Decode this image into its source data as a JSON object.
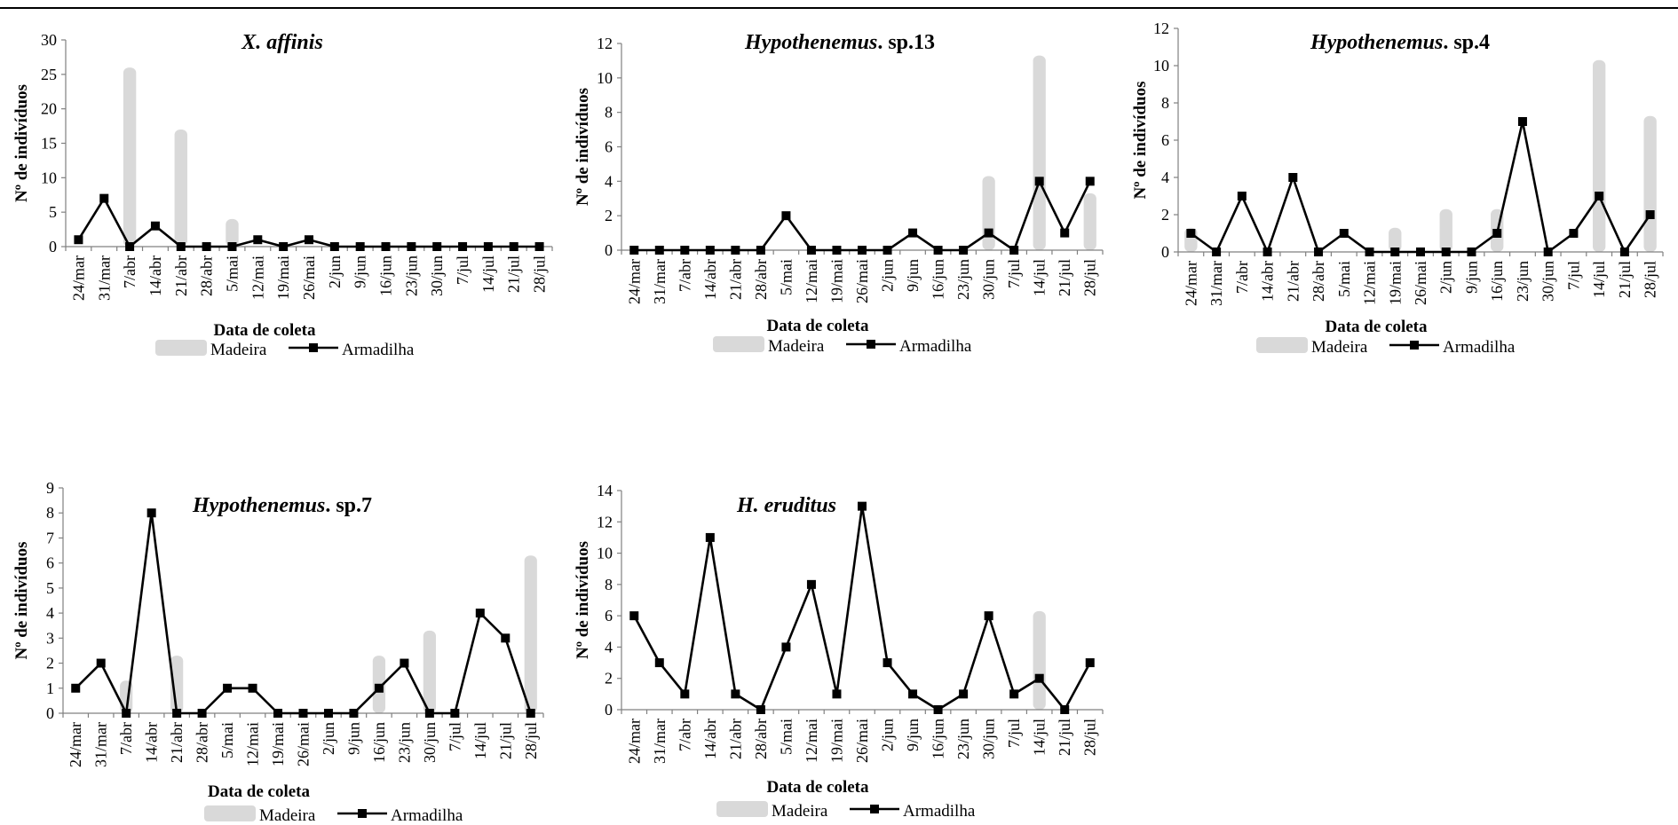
{
  "chart_data": [
    {
      "type": "bar",
      "title_italic": "X. affinis",
      "title_rest": "",
      "xlabel": "Data de coleta",
      "ylabel": "Nº de indivíduos",
      "ylim": [
        0,
        30
      ],
      "yticks": [
        0,
        5,
        10,
        15,
        20,
        25,
        30
      ],
      "categories": [
        "24/mar",
        "31/mar",
        "7/abr",
        "14/abr",
        "21/abr",
        "28/abr",
        "5/mai",
        "12/mai",
        "19/mai",
        "26/mai",
        "2/jun",
        "9/jun",
        "16/jun",
        "23/jun",
        "30/jun",
        "7/jul",
        "14/jul",
        "21/jul",
        "28/jul"
      ],
      "series": [
        {
          "name": "Madeira",
          "kind": "bar",
          "values": [
            0,
            0,
            26,
            0,
            17,
            0,
            4,
            0,
            0,
            0,
            0,
            0,
            0,
            0,
            0,
            0,
            0,
            0,
            0
          ]
        },
        {
          "name": "Armadilha",
          "kind": "line",
          "values": [
            1,
            7,
            0,
            3,
            0,
            0,
            0,
            1,
            0,
            1,
            0,
            0,
            0,
            0,
            0,
            0,
            0,
            0,
            0
          ]
        }
      ],
      "legend": [
        "Madeira",
        "Armadilha"
      ],
      "legend_position": "bottom"
    },
    {
      "type": "bar",
      "title_italic": "Hypothenemus",
      "title_rest": ". sp.13",
      "xlabel": "Data de coleta",
      "ylabel": "Nº de indivíduos",
      "ylim": [
        0,
        12
      ],
      "yticks": [
        0,
        2,
        4,
        6,
        8,
        10,
        12
      ],
      "categories": [
        "24/mar",
        "31/mar",
        "7/abr",
        "14/abr",
        "21/abr",
        "28/abr",
        "5/mai",
        "12/mai",
        "19/mai",
        "26/mai",
        "2/jun",
        "9/jun",
        "16/jun",
        "23/jun",
        "30/jun",
        "7/jul",
        "14/jul",
        "21/jul",
        "28/jul"
      ],
      "series": [
        {
          "name": "Madeira",
          "kind": "bar",
          "values": [
            0,
            0,
            0,
            0,
            0,
            0,
            0,
            0,
            0,
            0,
            0,
            0,
            0,
            0,
            4.3,
            0,
            11.3,
            0,
            3.3
          ]
        },
        {
          "name": "Armadilha",
          "kind": "line",
          "values": [
            0,
            0,
            0,
            0,
            0,
            0,
            2,
            0,
            0,
            0,
            0,
            1,
            0,
            0,
            1,
            0,
            4,
            1,
            4
          ]
        }
      ],
      "legend": [
        "Madeira",
        "Armadilha"
      ],
      "legend_position": "bottom"
    },
    {
      "type": "bar",
      "title_italic": "Hypothenemus",
      "title_rest": ". sp.4",
      "xlabel": "Data de coleta",
      "ylabel": "Nº de indivíduos",
      "ylim": [
        0,
        12
      ],
      "yticks": [
        0,
        2,
        4,
        6,
        8,
        10,
        12
      ],
      "categories": [
        "24/mar",
        "31/mar",
        "7/abr",
        "14/abr",
        "21/abr",
        "28/abr",
        "5/mai",
        "12/mai",
        "19/mai",
        "26/mai",
        "2/jun",
        "9/jun",
        "16/jun",
        "23/jun",
        "30/jun",
        "7/jul",
        "14/jul",
        "21/jul",
        "28/jul"
      ],
      "series": [
        {
          "name": "Madeira",
          "kind": "bar",
          "values": [
            1.3,
            0,
            0,
            0,
            0,
            0,
            0,
            0,
            1.3,
            0,
            2.3,
            0,
            2.3,
            0,
            0,
            0,
            10.3,
            0,
            7.3
          ]
        },
        {
          "name": "Armadilha",
          "kind": "line",
          "values": [
            1,
            0,
            3,
            0,
            4,
            0,
            1,
            0,
            0,
            0,
            0,
            0,
            1,
            7,
            0,
            1,
            3,
            0,
            2
          ]
        }
      ],
      "legend": [
        "Madeira",
        "Armadilha"
      ],
      "legend_position": "bottom"
    },
    {
      "type": "bar",
      "title_italic": "Hypothenemus",
      "title_rest": ". sp.7",
      "xlabel": "Data de coleta",
      "ylabel": "Nº de indivíduos",
      "ylim": [
        0,
        9
      ],
      "yticks": [
        0,
        1,
        2,
        3,
        4,
        5,
        6,
        7,
        8,
        9
      ],
      "categories": [
        "24/mar",
        "31/mar",
        "7/abr",
        "14/abr",
        "21/abr",
        "28/abr",
        "5/mai",
        "12/mai",
        "19/mai",
        "26/mai",
        "2/jun",
        "9/jun",
        "16/jun",
        "23/jun",
        "30/jun",
        "7/jul",
        "14/jul",
        "21/jul",
        "28/jul"
      ],
      "series": [
        {
          "name": "Madeira",
          "kind": "bar",
          "values": [
            0,
            0,
            1.3,
            0,
            2.3,
            0,
            0,
            0,
            0,
            0,
            0,
            0,
            2.3,
            0,
            3.3,
            0,
            0,
            0,
            6.3
          ]
        },
        {
          "name": "Armadilha",
          "kind": "line",
          "values": [
            1,
            2,
            0,
            8,
            0,
            0,
            1,
            1,
            0,
            0,
            0,
            0,
            1,
            2,
            0,
            0,
            4,
            3,
            0
          ]
        }
      ],
      "legend": [
        "Madeira",
        "Armadilha"
      ],
      "legend_position": "bottom"
    },
    {
      "type": "bar",
      "title_italic": "H. eruditus",
      "title_rest": "",
      "xlabel": "Data de coleta",
      "ylabel": "Nº de indivíduos",
      "ylim": [
        0,
        14
      ],
      "yticks": [
        0,
        2,
        4,
        6,
        8,
        10,
        12,
        14
      ],
      "categories": [
        "24/mar",
        "31/mar",
        "7/abr",
        "14/abr",
        "21/abr",
        "28/abr",
        "5/mai",
        "12/mai",
        "19/mai",
        "26/mai",
        "2/jun",
        "9/jun",
        "16/jun",
        "23/jun",
        "30/jun",
        "7/jul",
        "14/jul",
        "21/jul",
        "28/jul"
      ],
      "series": [
        {
          "name": "Madeira",
          "kind": "bar",
          "values": [
            0,
            0,
            0,
            0,
            0,
            0,
            0,
            0,
            0,
            0,
            0,
            0,
            0,
            0,
            0,
            0,
            6.3,
            0,
            0
          ]
        },
        {
          "name": "Armadilha",
          "kind": "line",
          "values": [
            6,
            3,
            1,
            11,
            1,
            0,
            4,
            8,
            1,
            13,
            3,
            1,
            0,
            1,
            6,
            1,
            2,
            0,
            3
          ]
        }
      ],
      "legend": [
        "Madeira",
        "Armadilha"
      ],
      "legend_position": "bottom"
    }
  ],
  "colors": {
    "bar": "#d9d9d9",
    "line": "#000000"
  }
}
